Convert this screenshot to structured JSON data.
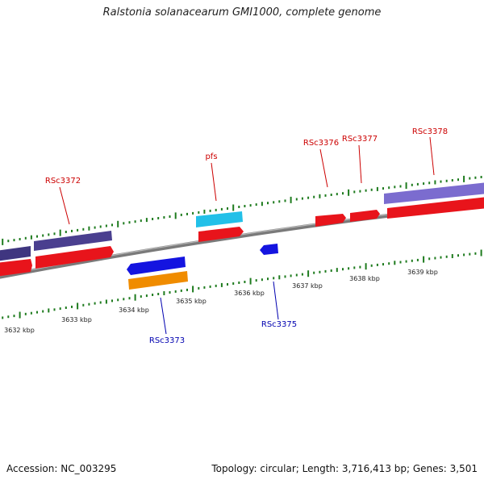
{
  "title": "Ralstonia solanacearum GMI1000, complete genome",
  "footer": {
    "accession": "Accession: NC_003295",
    "summary": "Topology: circular; Length: 3,716,413 bp; Genes: 3,501"
  },
  "colors": {
    "backbone": "#808080",
    "tick": "#1e7b1e",
    "forward_gene": "#e8141b",
    "reverse_gene": "#1414e0",
    "forward_label": "#cc0000",
    "reverse_label": "#0000b0",
    "forward_feature": "#4a3f8f",
    "forward_feature_light": "#7b6ccf",
    "rna": "#22c0e8",
    "reverse_feature": "#f08c00",
    "scale_text": "#222222"
  },
  "scale": {
    "unit": "kbp",
    "labels": [
      "3632 kbp",
      "3633 kbp",
      "3634 kbp",
      "3635 kbp",
      "3636 kbp",
      "3637 kbp",
      "3638 kbp",
      "3639 kbp"
    ]
  },
  "gene_labels": {
    "forward": [
      "RSc3372",
      "pfs",
      "RSc3376",
      "RSc3377",
      "RSc3378"
    ],
    "reverse": [
      "RSc3373",
      "RSc3375"
    ]
  }
}
